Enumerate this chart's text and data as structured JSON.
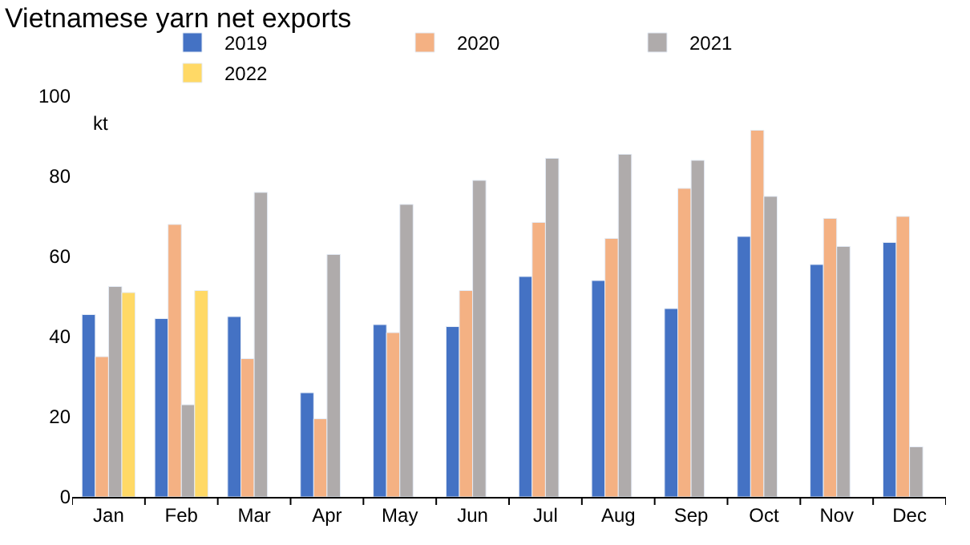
{
  "chart_data": {
    "type": "bar",
    "title": "Vietnamese yarn net exports",
    "ylabel": "kt",
    "categories": [
      "Jan",
      "Feb",
      "Mar",
      "Apr",
      "May",
      "Jun",
      "Jul",
      "Aug",
      "Sep",
      "Oct",
      "Nov",
      "Dec"
    ],
    "series": [
      {
        "name": "2019",
        "color": "#4472c4",
        "values": [
          45.5,
          44.5,
          45,
          26,
          43,
          42.5,
          55,
          54,
          47,
          65,
          58,
          63.5
        ]
      },
      {
        "name": "2020",
        "color": "#f4b183",
        "values": [
          35,
          68,
          34.5,
          19.5,
          41,
          51.5,
          68.5,
          64.5,
          77,
          91.5,
          69.5,
          70
        ]
      },
      {
        "name": "2021",
        "color": "#afabab",
        "values": [
          52.5,
          23,
          76,
          60.5,
          73,
          79,
          84.5,
          85.5,
          84,
          75,
          62.5,
          12.5
        ]
      },
      {
        "name": "2022",
        "color": "#ffd966",
        "values": [
          51,
          51.5,
          null,
          null,
          null,
          null,
          null,
          null,
          null,
          null,
          null,
          null
        ]
      }
    ],
    "ylim": [
      0,
      100
    ],
    "yticks": [
      0,
      20,
      40,
      60,
      80,
      100
    ],
    "legend": "top"
  }
}
